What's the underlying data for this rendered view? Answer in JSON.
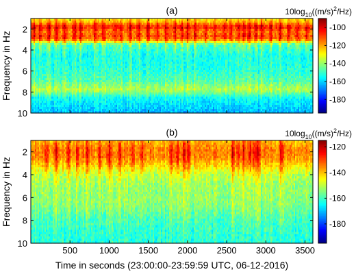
{
  "figure": {
    "xlabel": "Time in seconds (23:00:00-23:59:59 UTC, 06-12-2016)"
  },
  "chart_data": [
    {
      "type": "heatmap",
      "panel_label": "(a)",
      "ylabel": "Frequency in Hz",
      "colorbar_label_prefix": "10log",
      "colorbar_label_sub": "10",
      "colorbar_label_mid": "((m/s)",
      "colorbar_label_sup": "2",
      "colorbar_label_suffix": "/Hz)",
      "colormap": "jet",
      "xlim": [
        0,
        3600
      ],
      "ylim": [
        10,
        1
      ],
      "y_ticks": [
        2,
        4,
        6,
        8,
        10
      ],
      "y_tick_labels": [
        "2",
        "4",
        "6",
        "8",
        "10"
      ],
      "x_ticks": [
        500,
        1000,
        1500,
        2000,
        2500,
        3000,
        3500
      ],
      "x_tick_labels": [],
      "clim": [
        -195,
        -90
      ],
      "colorbar_ticks": [
        -100,
        -120,
        -140,
        -160,
        -180
      ],
      "colorbar_tick_labels": [
        "-100",
        "-120",
        "-140",
        "-160",
        "-180"
      ],
      "freq_profile": [
        [
          1.0,
          -130
        ],
        [
          1.3,
          -125
        ],
        [
          1.8,
          -108
        ],
        [
          2.2,
          -118
        ],
        [
          2.7,
          -114
        ],
        [
          3.0,
          -118
        ],
        [
          3.5,
          -150
        ],
        [
          4.5,
          -155
        ],
        [
          6.0,
          -152
        ],
        [
          7.0,
          -148
        ],
        [
          7.8,
          -138
        ],
        [
          8.5,
          -155
        ],
        [
          10.0,
          -163
        ]
      ],
      "burst_times": [
        40,
        120,
        230,
        330,
        430,
        560,
        640,
        820,
        930,
        1080,
        1150,
        1270,
        1380,
        1500,
        1620,
        1730,
        1840,
        1930,
        2000,
        2100,
        2230,
        2350,
        2470,
        2560,
        2660,
        2720,
        2790,
        2870,
        2950,
        3060,
        3180,
        3290,
        3410,
        3520
      ],
      "burst_strength": 14,
      "noise": 10
    },
    {
      "type": "heatmap",
      "panel_label": "(b)",
      "ylabel": "Frequency in Hz",
      "colorbar_label_prefix": "10log",
      "colorbar_label_sub": "10",
      "colorbar_label_mid": "((m/s)",
      "colorbar_label_sup": "2",
      "colorbar_label_suffix": "/Hz)",
      "colormap": "jet",
      "xlim": [
        0,
        3600
      ],
      "ylim": [
        10,
        1
      ],
      "y_ticks": [
        2,
        4,
        6,
        8,
        10
      ],
      "y_tick_labels": [
        "2",
        "4",
        "6",
        "8",
        "10"
      ],
      "x_ticks": [
        500,
        1000,
        1500,
        2000,
        2500,
        3000,
        3500
      ],
      "x_tick_labels": [
        "500",
        "1000",
        "1500",
        "2000",
        "2500",
        "3000",
        "3500"
      ],
      "clim": [
        -195,
        -115
      ],
      "colorbar_ticks": [
        -120,
        -140,
        -160,
        -180
      ],
      "colorbar_tick_labels": [
        "-120",
        "-140",
        "-160",
        "-180"
      ],
      "freq_profile": [
        [
          1.0,
          -140
        ],
        [
          1.8,
          -135
        ],
        [
          2.5,
          -136
        ],
        [
          3.2,
          -142
        ],
        [
          4.0,
          -150
        ],
        [
          5.0,
          -153
        ],
        [
          6.5,
          -154
        ],
        [
          8.0,
          -160
        ],
        [
          10.0,
          -162
        ]
      ],
      "burst_times": [
        200,
        330,
        480,
        600,
        720,
        880,
        1000,
        1140,
        1300,
        1420,
        1800,
        1870,
        1960,
        2020,
        2580,
        2650,
        2720,
        2800,
        2850,
        2900,
        3200
      ],
      "burst_strength": 12,
      "noise": 8
    }
  ]
}
